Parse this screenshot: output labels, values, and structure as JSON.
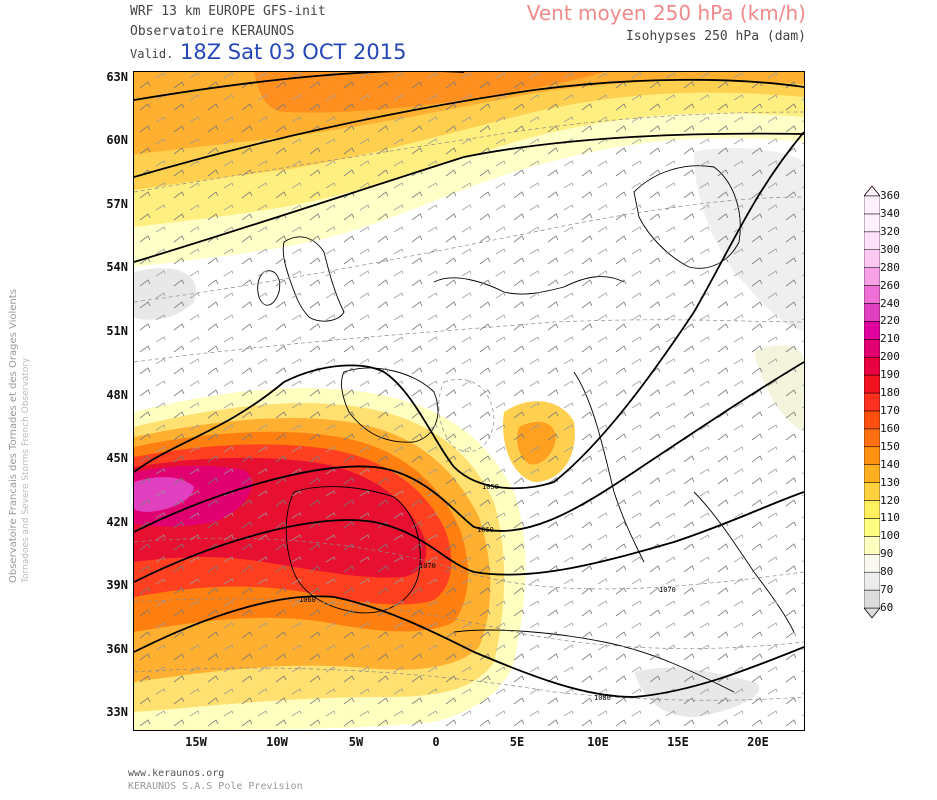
{
  "header": {
    "model": "WRF 13 km EUROPE  GFS-init",
    "organization": "Observatoire KERAUNOS",
    "valid_label": "Valid.",
    "valid_time": "18Z Sat 03 OCT 2015",
    "field_title": "Vent moyen 250 hPa (km/h)",
    "field_subtitle": "Isohypses 250 hPa (dam)"
  },
  "side_text": {
    "line1": "Observatoire Francais des Tornades et des Orages Violents",
    "line2": "Tornadoes and Severe Storms French Observatory"
  },
  "footer": {
    "url": "www.keraunos.org",
    "company": "KERAUNOS S.A.S Pole Prevision"
  },
  "axes": {
    "lat_labels": [
      "63N",
      "60N",
      "57N",
      "54N",
      "51N",
      "48N",
      "45N",
      "42N",
      "39N",
      "36N",
      "33N"
    ],
    "lon_labels": [
      "15W",
      "10W",
      "5W",
      "0",
      "5E",
      "10E",
      "15E",
      "20E"
    ]
  },
  "colorbar": {
    "levels": [
      "60",
      "70",
      "80",
      "90",
      "100",
      "110",
      "120",
      "130",
      "140",
      "150",
      "160",
      "170",
      "180",
      "190",
      "200",
      "210",
      "220",
      "240",
      "260",
      "280",
      "300",
      "320",
      "340",
      "360"
    ],
    "colors": [
      "#dcdcdc",
      "#ececec",
      "#fafaf0",
      "#ffffc0",
      "#ffff80",
      "#fff060",
      "#ffd040",
      "#ffb020",
      "#ff9010",
      "#ff7010",
      "#ff5010",
      "#ff3020",
      "#f01020",
      "#e80040",
      "#e00070",
      "#e000a0",
      "#e040c0",
      "#f070d8",
      "#f8a0e8",
      "#fcc8f4",
      "#ffe0fb",
      "#fff0fd"
    ]
  },
  "isohypse_labels": [
    "1050",
    "1060",
    "1070",
    "1060",
    "1070",
    "1080"
  ]
}
